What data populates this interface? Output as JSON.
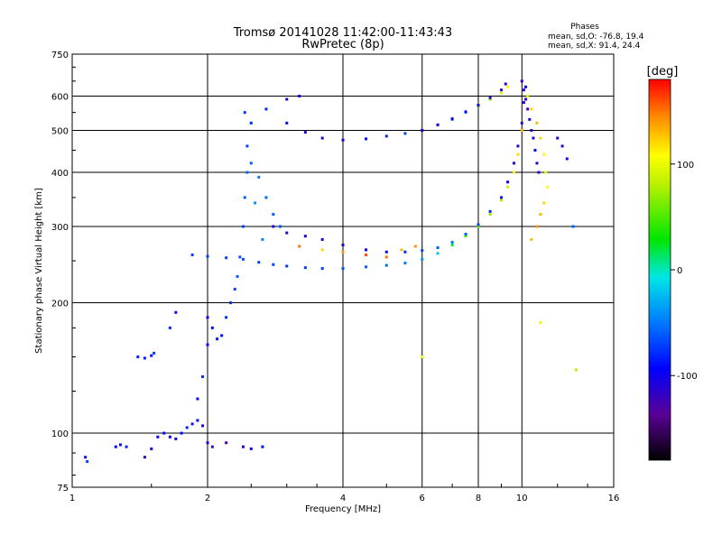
{
  "chart_data": {
    "type": "scatter",
    "title_line1": "Tromsø 20141028 11:42:00-11:43:43",
    "title_line2": "RwPretec (8p)",
    "xlabel": "Frequency [MHz]",
    "ylabel": "Stationary phase Virtual Height [km]",
    "x_scale": "log",
    "y_scale": "log",
    "xlim": [
      1,
      16
    ],
    "ylim": [
      75,
      750
    ],
    "x_ticks": [
      1,
      2,
      4,
      6,
      8,
      10,
      16
    ],
    "x_tick_labels": [
      "1",
      "2",
      "4",
      "6",
      "8",
      "10",
      "16"
    ],
    "y_ticks": [
      75,
      100,
      200,
      300,
      400,
      500,
      600,
      750
    ],
    "y_tick_labels": [
      "75",
      "100",
      "200",
      "300",
      "400",
      "500",
      "600",
      "750"
    ],
    "grid": true,
    "stats": {
      "heading": "Phases",
      "line_o": "mean, sd,O: -76.8, 19.4",
      "line_x": "mean, sd,X:  91.4, 24.4"
    },
    "colorbar": {
      "label": "[deg]",
      "range": [
        -180,
        180
      ],
      "ticks": [
        100,
        0,
        -100
      ],
      "tick_labels": [
        "100",
        "0",
        "-100"
      ],
      "colormap": "rainbow"
    },
    "series": [
      {
        "points": [
          [
            1.07,
            88,
            -90
          ],
          [
            1.08,
            86,
            -70
          ],
          [
            1.25,
            93,
            -90
          ],
          [
            1.28,
            94,
            -100
          ],
          [
            1.32,
            93,
            -80
          ],
          [
            1.45,
            88,
            -120
          ],
          [
            1.5,
            92,
            -110
          ],
          [
            1.55,
            98,
            -100
          ],
          [
            1.6,
            100,
            -90
          ],
          [
            1.65,
            98,
            -95
          ],
          [
            1.7,
            97,
            -100
          ],
          [
            1.75,
            100,
            -90
          ],
          [
            1.8,
            103,
            -80
          ],
          [
            1.85,
            105,
            -85
          ],
          [
            1.9,
            107,
            -90
          ],
          [
            1.95,
            104,
            -100
          ],
          [
            2.0,
            95,
            -110
          ],
          [
            2.05,
            93,
            -120
          ],
          [
            2.2,
            95,
            -130
          ],
          [
            2.4,
            93,
            -110
          ],
          [
            2.5,
            92,
            -100
          ],
          [
            2.65,
            93,
            -90
          ]
        ]
      },
      {
        "points": [
          [
            1.4,
            150,
            -80
          ],
          [
            1.45,
            149,
            -85
          ],
          [
            1.5,
            151,
            -90
          ],
          [
            1.52,
            153,
            -70
          ],
          [
            1.65,
            175,
            -80
          ],
          [
            1.7,
            190,
            -90
          ]
        ]
      },
      {
        "points": [
          [
            1.9,
            120,
            -90
          ],
          [
            1.95,
            135,
            -80
          ],
          [
            2.0,
            160,
            -95
          ],
          [
            2.0,
            185,
            -100
          ],
          [
            2.05,
            175,
            -90
          ],
          [
            2.1,
            165,
            -85
          ],
          [
            2.15,
            168,
            -90
          ],
          [
            2.2,
            185,
            -80
          ],
          [
            2.25,
            200,
            -75
          ],
          [
            2.3,
            215,
            -70
          ],
          [
            2.33,
            230,
            -60
          ],
          [
            2.36,
            255,
            -65
          ],
          [
            2.4,
            300,
            -70
          ],
          [
            2.42,
            350,
            -60
          ],
          [
            2.45,
            400,
            -55
          ],
          [
            2.5,
            420,
            -60
          ],
          [
            2.6,
            390,
            -50
          ],
          [
            2.7,
            350,
            -55
          ],
          [
            2.8,
            320,
            -60
          ],
          [
            2.9,
            300,
            -65
          ],
          [
            2.45,
            460,
            -70
          ],
          [
            2.42,
            550,
            -75
          ],
          [
            2.5,
            520,
            -80
          ],
          [
            2.55,
            340,
            -40
          ],
          [
            2.65,
            280,
            -45
          ]
        ]
      },
      {
        "points": [
          [
            1.85,
            258,
            -70
          ],
          [
            2.0,
            256,
            -75
          ],
          [
            2.2,
            254,
            -70
          ],
          [
            2.4,
            252,
            -65
          ],
          [
            2.6,
            248,
            -70
          ],
          [
            2.8,
            245,
            -70
          ],
          [
            3.0,
            243,
            -75
          ],
          [
            3.3,
            241,
            -70
          ],
          [
            3.6,
            240,
            -70
          ],
          [
            4.0,
            240,
            -65
          ],
          [
            4.5,
            242,
            -60
          ],
          [
            5.0,
            244,
            -55
          ],
          [
            5.5,
            247,
            -50
          ],
          [
            6.0,
            252,
            -40
          ],
          [
            6.5,
            260,
            -20
          ],
          [
            7.0,
            272,
            20
          ],
          [
            7.5,
            285,
            50
          ],
          [
            8.0,
            300,
            60
          ],
          [
            8.5,
            320,
            70
          ],
          [
            9.0,
            345,
            80
          ],
          [
            9.3,
            370,
            90
          ],
          [
            9.6,
            400,
            110
          ],
          [
            9.8,
            440,
            120
          ],
          [
            10.0,
            500,
            130
          ]
        ]
      },
      {
        "points": [
          [
            2.8,
            300,
            -110
          ],
          [
            3.0,
            290,
            -115
          ],
          [
            3.3,
            285,
            -110
          ],
          [
            3.6,
            280,
            -105
          ],
          [
            4.0,
            272,
            -110
          ],
          [
            4.5,
            265,
            -100
          ],
          [
            5.0,
            262,
            -90
          ],
          [
            5.5,
            262,
            -80
          ],
          [
            6.0,
            264,
            -70
          ],
          [
            6.5,
            268,
            -60
          ],
          [
            7.0,
            276,
            -50
          ],
          [
            7.5,
            288,
            -60
          ],
          [
            8.0,
            303,
            -70
          ],
          [
            8.5,
            325,
            -80
          ],
          [
            9.0,
            350,
            -90
          ],
          [
            9.3,
            380,
            -100
          ],
          [
            9.6,
            420,
            -110
          ],
          [
            9.8,
            460,
            -115
          ],
          [
            10.0,
            520,
            -120
          ],
          [
            10.1,
            580,
            -110
          ],
          [
            10.2,
            630,
            -100
          ]
        ]
      },
      {
        "points": [
          [
            3.2,
            270,
            150
          ],
          [
            3.6,
            265,
            120
          ],
          [
            4.0,
            262,
            140
          ],
          [
            4.5,
            258,
            160
          ],
          [
            5.0,
            255,
            150
          ],
          [
            5.4,
            265,
            130
          ],
          [
            5.8,
            270,
            140
          ]
        ]
      },
      {
        "points": [
          [
            2.7,
            560,
            -80
          ],
          [
            3.0,
            520,
            -90
          ],
          [
            3.3,
            495,
            -100
          ],
          [
            3.6,
            480,
            -110
          ],
          [
            4.0,
            475,
            -100
          ],
          [
            4.5,
            478,
            -90
          ],
          [
            5.0,
            485,
            -80
          ],
          [
            5.5,
            492,
            -70
          ],
          [
            6.0,
            500,
            -75
          ],
          [
            6.5,
            515,
            -60
          ],
          [
            7.0,
            530,
            -40
          ],
          [
            7.5,
            550,
            -20
          ],
          [
            8.0,
            570,
            20
          ],
          [
            8.5,
            590,
            60
          ],
          [
            9.0,
            610,
            90
          ],
          [
            9.3,
            630,
            110
          ]
        ]
      },
      {
        "points": [
          [
            6.0,
            500,
            -110
          ],
          [
            6.5,
            515,
            -115
          ],
          [
            7.0,
            532,
            -110
          ],
          [
            7.5,
            552,
            -105
          ],
          [
            8.0,
            572,
            -110
          ],
          [
            8.5,
            595,
            -115
          ],
          [
            9.0,
            620,
            -120
          ],
          [
            9.2,
            640,
            -110
          ]
        ]
      },
      {
        "points": [
          [
            10.0,
            650,
            -120
          ],
          [
            10.1,
            620,
            -110
          ],
          [
            10.2,
            590,
            -115
          ],
          [
            10.3,
            560,
            -120
          ],
          [
            10.4,
            530,
            -110
          ],
          [
            10.5,
            500,
            -120
          ],
          [
            10.6,
            480,
            -110
          ],
          [
            10.7,
            450,
            -100
          ],
          [
            10.8,
            420,
            -110
          ],
          [
            10.9,
            400,
            -120
          ]
        ]
      },
      {
        "points": [
          [
            10.3,
            600,
            110
          ],
          [
            10.5,
            560,
            120
          ],
          [
            10.8,
            520,
            130
          ],
          [
            11.0,
            480,
            120
          ],
          [
            11.2,
            440,
            110
          ],
          [
            11.3,
            400,
            100
          ],
          [
            11.4,
            370,
            110
          ],
          [
            11.2,
            340,
            120
          ],
          [
            11.0,
            320,
            130
          ],
          [
            10.8,
            300,
            140
          ],
          [
            10.5,
            280,
            130
          ]
        ]
      },
      {
        "points": [
          [
            12.0,
            480,
            -110
          ],
          [
            12.3,
            460,
            -115
          ],
          [
            12.6,
            430,
            -100
          ],
          [
            13.0,
            300,
            -60
          ],
          [
            13.2,
            140,
            80
          ],
          [
            11.0,
            180,
            100
          ],
          [
            3.0,
            590,
            -110
          ],
          [
            3.2,
            600,
            -100
          ],
          [
            6.0,
            150,
            110
          ]
        ]
      }
    ]
  }
}
